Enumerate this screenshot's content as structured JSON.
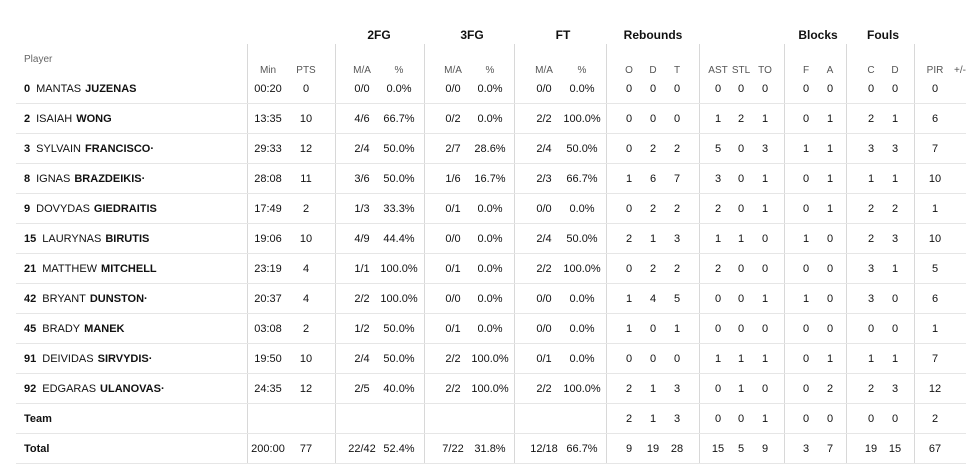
{
  "groups": [
    "2FG",
    "3FG",
    "FT",
    "Rebounds",
    "Blocks",
    "Fouls"
  ],
  "player_header": "Player",
  "sub_headers": [
    "Min",
    "PTS",
    "M/A",
    "%",
    "M/A",
    "%",
    "M/A",
    "%",
    "O",
    "D",
    "T",
    "AST",
    "STL",
    "TO",
    "F",
    "A",
    "C",
    "D",
    "PIR",
    "+/-"
  ],
  "players": [
    {
      "num": "0",
      "first": "MANTAS",
      "last": "JUZENAS",
      "stats": [
        "00:20",
        "0",
        "0/0",
        "0.0%",
        "0/0",
        "0.0%",
        "0/0",
        "0.0%",
        "0",
        "0",
        "0",
        "0",
        "0",
        "0",
        "0",
        "0",
        "0",
        "0",
        "0",
        ""
      ]
    },
    {
      "num": "2",
      "first": "ISAIAH",
      "last": "WONG",
      "stats": [
        "13:35",
        "10",
        "4/6",
        "66.7%",
        "0/2",
        "0.0%",
        "2/2",
        "100.0%",
        "0",
        "0",
        "0",
        "1",
        "2",
        "1",
        "0",
        "1",
        "2",
        "1",
        "6",
        ""
      ]
    },
    {
      "num": "3",
      "first": "SYLVAIN",
      "last": "FRANCISCO·",
      "stats": [
        "29:33",
        "12",
        "2/4",
        "50.0%",
        "2/7",
        "28.6%",
        "2/4",
        "50.0%",
        "0",
        "2",
        "2",
        "5",
        "0",
        "3",
        "1",
        "1",
        "3",
        "3",
        "7",
        ""
      ]
    },
    {
      "num": "8",
      "first": "IGNAS",
      "last": "BRAZDEIKIS·",
      "stats": [
        "28:08",
        "11",
        "3/6",
        "50.0%",
        "1/6",
        "16.7%",
        "2/3",
        "66.7%",
        "1",
        "6",
        "7",
        "3",
        "0",
        "1",
        "0",
        "1",
        "1",
        "1",
        "10",
        ""
      ]
    },
    {
      "num": "9",
      "first": "DOVYDAS",
      "last": "GIEDRAITIS",
      "stats": [
        "17:49",
        "2",
        "1/3",
        "33.3%",
        "0/1",
        "0.0%",
        "0/0",
        "0.0%",
        "0",
        "2",
        "2",
        "2",
        "0",
        "1",
        "0",
        "1",
        "2",
        "2",
        "1",
        ""
      ]
    },
    {
      "num": "15",
      "first": "LAURYNAS",
      "last": "BIRUTIS",
      "stats": [
        "19:06",
        "10",
        "4/9",
        "44.4%",
        "0/0",
        "0.0%",
        "2/4",
        "50.0%",
        "2",
        "1",
        "3",
        "1",
        "1",
        "0",
        "1",
        "0",
        "2",
        "3",
        "10",
        ""
      ]
    },
    {
      "num": "21",
      "first": "MATTHEW",
      "last": "MITCHELL",
      "stats": [
        "23:19",
        "4",
        "1/1",
        "100.0%",
        "0/1",
        "0.0%",
        "2/2",
        "100.0%",
        "0",
        "2",
        "2",
        "2",
        "0",
        "0",
        "0",
        "0",
        "3",
        "1",
        "5",
        ""
      ]
    },
    {
      "num": "42",
      "first": "BRYANT",
      "last": "DUNSTON·",
      "stats": [
        "20:37",
        "4",
        "2/2",
        "100.0%",
        "0/0",
        "0.0%",
        "0/0",
        "0.0%",
        "1",
        "4",
        "5",
        "0",
        "0",
        "1",
        "1",
        "0",
        "3",
        "0",
        "6",
        ""
      ]
    },
    {
      "num": "45",
      "first": "BRADY",
      "last": "MANEK",
      "stats": [
        "03:08",
        "2",
        "1/2",
        "50.0%",
        "0/1",
        "0.0%",
        "0/0",
        "0.0%",
        "1",
        "0",
        "1",
        "0",
        "0",
        "0",
        "0",
        "0",
        "0",
        "0",
        "1",
        ""
      ]
    },
    {
      "num": "91",
      "first": "DEIVIDAS",
      "last": "SIRVYDIS·",
      "stats": [
        "19:50",
        "10",
        "2/4",
        "50.0%",
        "2/2",
        "100.0%",
        "0/1",
        "0.0%",
        "0",
        "0",
        "0",
        "1",
        "1",
        "1",
        "0",
        "1",
        "1",
        "1",
        "7",
        ""
      ]
    },
    {
      "num": "92",
      "first": "EDGARAS",
      "last": "ULANOVAS·",
      "stats": [
        "24:35",
        "12",
        "2/5",
        "40.0%",
        "2/2",
        "100.0%",
        "2/2",
        "100.0%",
        "2",
        "1",
        "3",
        "0",
        "1",
        "0",
        "0",
        "2",
        "2",
        "3",
        "12",
        ""
      ]
    }
  ],
  "team_row": {
    "label": "Team",
    "stats": [
      "",
      "",
      "",
      "",
      "",
      "",
      "",
      "",
      "2",
      "1",
      "3",
      "0",
      "0",
      "1",
      "0",
      "0",
      "0",
      "0",
      "2",
      ""
    ]
  },
  "total_row": {
    "label": "Total",
    "stats": [
      "200:00",
      "77",
      "22/42",
      "52.4%",
      "7/22",
      "31.8%",
      "12/18",
      "66.7%",
      "9",
      "19",
      "28",
      "15",
      "5",
      "9",
      "3",
      "7",
      "19",
      "15",
      "67",
      ""
    ]
  }
}
